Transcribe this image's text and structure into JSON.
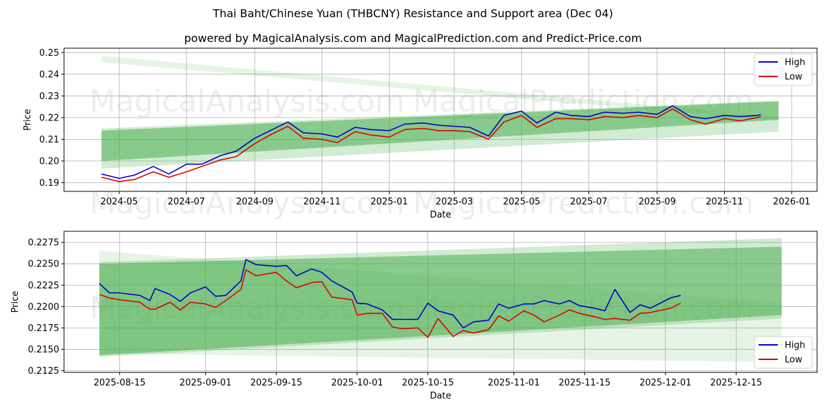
{
  "title": "Thai Baht/Chinese Yuan (THBCNY) Resistance and Support area (Dec 04)",
  "subtitle": "powered by MagicalAnalysis.com and MagicalPrediction.com and Predict-Price.com",
  "watermarks": [
    "MagicalAnalysis.com",
    "MagicalPrediction.com"
  ],
  "colors": {
    "high": "#0000cc",
    "low": "#dd0000",
    "band": "#4caf50",
    "grid": "#b0b0b0"
  },
  "chart_data": [
    {
      "type": "line",
      "title": "Full history",
      "xlabel": "Date",
      "ylabel": "Price",
      "ylim": [
        0.186,
        0.252
      ],
      "grid": true,
      "legend_position": "upper right",
      "x_ticks": [
        "2024-05",
        "2024-07",
        "2024-09",
        "2024-11",
        "2025-01",
        "2025-03",
        "2025-05",
        "2025-07",
        "2025-09",
        "2025-11",
        "2026-01"
      ],
      "y_ticks": [
        "0.19",
        "0.20",
        "0.21",
        "0.22",
        "0.23",
        "0.24",
        "0.25"
      ],
      "legend": [
        "High",
        "Low"
      ],
      "x": [
        "2024-04-15",
        "2024-05-01",
        "2024-05-15",
        "2024-06-01",
        "2024-06-15",
        "2024-07-01",
        "2024-07-15",
        "2024-08-01",
        "2024-08-15",
        "2024-09-01",
        "2024-09-15",
        "2024-10-01",
        "2024-10-15",
        "2024-11-01",
        "2024-11-15",
        "2024-12-01",
        "2024-12-15",
        "2025-01-01",
        "2025-01-15",
        "2025-02-01",
        "2025-02-15",
        "2025-03-01",
        "2025-03-15",
        "2025-04-01",
        "2025-04-15",
        "2025-05-01",
        "2025-05-15",
        "2025-06-01",
        "2025-06-15",
        "2025-07-01",
        "2025-07-15",
        "2025-08-01",
        "2025-08-15",
        "2025-09-01",
        "2025-09-15",
        "2025-10-01",
        "2025-10-15",
        "2025-11-01",
        "2025-11-15",
        "2025-12-01",
        "2025-12-04"
      ],
      "series": [
        {
          "name": "High",
          "values": [
            0.194,
            0.192,
            0.1935,
            0.1975,
            0.194,
            0.1985,
            0.1985,
            0.2025,
            0.2045,
            0.2105,
            0.214,
            0.218,
            0.213,
            0.2125,
            0.211,
            0.2155,
            0.2145,
            0.214,
            0.217,
            0.2175,
            0.2165,
            0.216,
            0.2155,
            0.2115,
            0.221,
            0.223,
            0.2175,
            0.2225,
            0.221,
            0.2205,
            0.2225,
            0.222,
            0.2225,
            0.2215,
            0.2255,
            0.2205,
            0.2195,
            0.221,
            0.2205,
            0.221,
            0.2215
          ]
        },
        {
          "name": "Low",
          "values": [
            0.1925,
            0.1905,
            0.1915,
            0.195,
            0.1925,
            0.195,
            0.1975,
            0.2005,
            0.202,
            0.208,
            0.212,
            0.216,
            0.2105,
            0.21,
            0.2085,
            0.2135,
            0.212,
            0.211,
            0.2145,
            0.215,
            0.214,
            0.214,
            0.2135,
            0.21,
            0.218,
            0.221,
            0.2155,
            0.2195,
            0.2195,
            0.219,
            0.2205,
            0.22,
            0.221,
            0.22,
            0.224,
            0.219,
            0.217,
            0.2195,
            0.2185,
            0.22,
            0.2205
          ]
        }
      ],
      "bands": [
        {
          "name": "support-resistance-main",
          "start": "2024-04-15",
          "end": "2025-12-20",
          "upper": [
            0.214,
            0.2275
          ],
          "lower": [
            0.2,
            0.219
          ]
        },
        {
          "name": "support-resistance-wide",
          "start": "2024-04-15",
          "end": "2025-12-20",
          "upper": [
            0.215,
            0.2278
          ],
          "lower": [
            0.1965,
            0.2135
          ]
        },
        {
          "name": "resistance-decline",
          "start": "2024-04-15",
          "end": "2025-12-20",
          "upper": [
            0.2485,
            0.2205
          ],
          "lower": [
            0.2455,
            0.2185
          ]
        }
      ]
    },
    {
      "type": "line",
      "title": "Recent detail",
      "xlabel": "Date",
      "ylabel": "Price",
      "ylim": [
        0.2123,
        0.2288
      ],
      "grid": true,
      "legend_position": "lower right",
      "x_ticks": [
        "2025-08-15",
        "2025-09-01",
        "2025-09-15",
        "2025-10-01",
        "2025-10-15",
        "2025-11-01",
        "2025-11-15",
        "2025-12-01",
        "2025-12-15"
      ],
      "y_ticks": [
        "0.2125",
        "0.2150",
        "0.2175",
        "0.2200",
        "0.2225",
        "0.2250",
        "0.2275"
      ],
      "legend": [
        "High",
        "Low"
      ],
      "x": [
        "2025-08-11",
        "2025-08-13",
        "2025-08-15",
        "2025-08-19",
        "2025-08-21",
        "2025-08-22",
        "2025-08-25",
        "2025-08-27",
        "2025-08-29",
        "2025-09-01",
        "2025-09-03",
        "2025-09-05",
        "2025-09-08",
        "2025-09-09",
        "2025-09-11",
        "2025-09-15",
        "2025-09-17",
        "2025-09-19",
        "2025-09-22",
        "2025-09-24",
        "2025-09-26",
        "2025-09-30",
        "2025-10-01",
        "2025-10-03",
        "2025-10-06",
        "2025-10-08",
        "2025-10-10",
        "2025-10-13",
        "2025-10-15",
        "2025-10-17",
        "2025-10-20",
        "2025-10-22",
        "2025-10-24",
        "2025-10-27",
        "2025-10-29",
        "2025-10-31",
        "2025-11-03",
        "2025-11-05",
        "2025-11-07",
        "2025-11-10",
        "2025-11-12",
        "2025-11-14",
        "2025-11-17",
        "2025-11-19",
        "2025-11-21",
        "2025-11-24",
        "2025-11-26",
        "2025-11-28",
        "2025-12-02",
        "2025-12-04"
      ],
      "series": [
        {
          "name": "High",
          "values": [
            0.2227,
            0.2216,
            0.2216,
            0.2213,
            0.2207,
            0.2221,
            0.2214,
            0.2206,
            0.2216,
            0.2223,
            0.2212,
            0.2213,
            0.223,
            0.2255,
            0.2249,
            0.2247,
            0.2248,
            0.2236,
            0.2244,
            0.224,
            0.223,
            0.2217,
            0.2204,
            0.2203,
            0.2196,
            0.2185,
            0.2185,
            0.2185,
            0.2204,
            0.2195,
            0.219,
            0.2175,
            0.2182,
            0.2184,
            0.2203,
            0.2198,
            0.2203,
            0.2203,
            0.2207,
            0.2203,
            0.2207,
            0.2201,
            0.2198,
            0.2195,
            0.222,
            0.2193,
            0.2202,
            0.2198,
            0.221,
            0.2213
          ]
        },
        {
          "name": "Low",
          "values": [
            0.2214,
            0.221,
            0.2208,
            0.2205,
            0.2197,
            0.2197,
            0.2205,
            0.2196,
            0.2205,
            0.2203,
            0.2199,
            0.2207,
            0.222,
            0.2243,
            0.2236,
            0.224,
            0.223,
            0.2222,
            0.2228,
            0.2229,
            0.2211,
            0.2208,
            0.219,
            0.2192,
            0.2192,
            0.2176,
            0.2174,
            0.2175,
            0.2164,
            0.2186,
            0.2165,
            0.2172,
            0.2169,
            0.2173,
            0.2189,
            0.2183,
            0.2195,
            0.219,
            0.2182,
            0.219,
            0.2196,
            0.2192,
            0.2188,
            0.2185,
            0.2186,
            0.2184,
            0.2192,
            0.2193,
            0.2198,
            0.2204
          ]
        }
      ],
      "bands": [
        {
          "name": "support-resistance-main",
          "start": "2025-08-11",
          "end": "2025-12-24",
          "upper": [
            0.225,
            0.227
          ],
          "lower": [
            0.2143,
            0.219
          ]
        },
        {
          "name": "support-resistance-wide",
          "start": "2025-08-11",
          "end": "2025-12-24",
          "upper": [
            0.2252,
            0.228
          ],
          "lower": [
            0.2141,
            0.2186
          ]
        },
        {
          "name": "resistance-decline",
          "start": "2025-08-11",
          "end": "2025-12-24",
          "upper": [
            0.2265,
            0.2205
          ],
          "lower": [
            0.2145,
            0.2135
          ]
        }
      ]
    }
  ]
}
